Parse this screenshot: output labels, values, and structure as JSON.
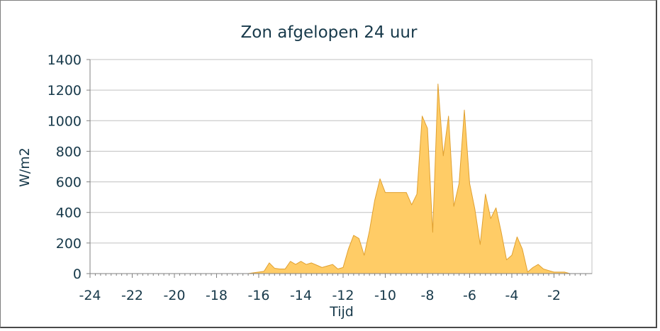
{
  "chart_data": {
    "type": "area",
    "title": "Zon afgelopen 24 uur",
    "xlabel": "Tijd",
    "ylabel": "W/m2",
    "xlim": [
      -24,
      -0.2
    ],
    "ylim": [
      0,
      1400
    ],
    "x_ticks": [
      -24,
      -22,
      -20,
      -18,
      -16,
      -14,
      -12,
      -10,
      -8,
      -6,
      -4,
      -2
    ],
    "x_tick_labels": [
      "-24",
      "-22",
      "-20",
      "-18",
      "-16",
      "-14",
      "-12",
      "-10",
      "-8",
      "-6",
      "-4",
      "-2"
    ],
    "y_ticks": [
      0,
      200,
      400,
      600,
      800,
      1000,
      1200,
      1400
    ],
    "y_tick_labels": [
      "0",
      "200",
      "400",
      "600",
      "800",
      "1000",
      "1200",
      "1400"
    ],
    "grid": true,
    "legend": "none",
    "colors": {
      "fill": "#ffcc66",
      "line": "#e0a030",
      "grid": "#c0c0c0",
      "text": "#17394a"
    },
    "series": [
      {
        "x": [
          -24,
          -23.75,
          -23.5,
          -23.25,
          -23,
          -22.75,
          -22.5,
          -22.25,
          -22,
          -21.75,
          -21.5,
          -21.25,
          -21,
          -20.75,
          -20.5,
          -20.25,
          -20,
          -19.75,
          -19.5,
          -19.25,
          -19,
          -18.75,
          -18.5,
          -18.25,
          -18,
          -17.75,
          -17.5,
          -17.25,
          -17,
          -16.75,
          -16.5,
          -16.25,
          -16,
          -15.75,
          -15.5,
          -15.25,
          -15,
          -14.75,
          -14.5,
          -14.25,
          -14,
          -13.75,
          -13.5,
          -13.25,
          -13,
          -12.75,
          -12.5,
          -12.25,
          -12,
          -11.75,
          -11.5,
          -11.25,
          -11,
          -10.75,
          -10.5,
          -10.25,
          -10,
          -9.75,
          -9.5,
          -9.25,
          -9,
          -8.75,
          -8.5,
          -8.25,
          -8,
          -7.75,
          -7.5,
          -7.25,
          -7,
          -6.75,
          -6.5,
          -6.25,
          -6,
          -5.75,
          -5.5,
          -5.25,
          -5,
          -4.75,
          -4.5,
          -4.25,
          -4,
          -3.75,
          -3.5,
          -3.25,
          -3,
          -2.75,
          -2.5,
          -2.25,
          -2,
          -1.75,
          -1.5,
          -1.25,
          -1,
          -0.75,
          -0.5
        ],
        "values": [
          0,
          0,
          0,
          0,
          0,
          0,
          0,
          0,
          0,
          0,
          0,
          0,
          0,
          0,
          0,
          0,
          0,
          0,
          0,
          0,
          0,
          0,
          0,
          0,
          0,
          0,
          0,
          0,
          0,
          0,
          0,
          5,
          10,
          15,
          70,
          35,
          30,
          30,
          80,
          60,
          80,
          60,
          70,
          55,
          40,
          50,
          60,
          30,
          40,
          160,
          250,
          230,
          120,
          280,
          480,
          620,
          530,
          530,
          530,
          530,
          530,
          450,
          520,
          1030,
          950,
          270,
          1240,
          770,
          1030,
          440,
          590,
          1070,
          590,
          420,
          190,
          520,
          360,
          430,
          270,
          90,
          120,
          240,
          160,
          10,
          40,
          60,
          30,
          20,
          10,
          10,
          10,
          0,
          0,
          0,
          0
        ]
      }
    ]
  }
}
